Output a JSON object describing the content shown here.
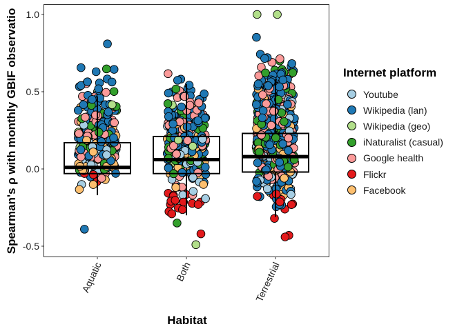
{
  "chart_data": {
    "type": "boxplot-jitter",
    "title": "",
    "xlabel": "Habitat",
    "ylabel": "Spearman's ρ with monthly GBIF observatio",
    "ylim": [
      -0.56,
      1.06
    ],
    "yticks": [
      1.0,
      0.5,
      0.0,
      -0.5
    ],
    "ytick_labels": [
      "1.0",
      "0.5",
      "0.0",
      "-0.5"
    ],
    "categories": [
      "Aquatic",
      "Both",
      "Terrestrial"
    ],
    "boxes": [
      {
        "category": "Aquatic",
        "q1": -0.03,
        "median": 0.01,
        "q3": 0.17,
        "whisker_low": -0.17,
        "whisker_high": 0.47
      },
      {
        "category": "Both",
        "q1": -0.03,
        "median": 0.06,
        "q3": 0.21,
        "whisker_low": -0.3,
        "whisker_high": 0.55
      },
      {
        "category": "Terrestrial",
        "q1": -0.02,
        "median": 0.08,
        "q3": 0.23,
        "whisker_low": -0.31,
        "whisker_high": 0.58
      }
    ],
    "grid": false,
    "legend_position": "right",
    "legend": {
      "title": "Internet platform",
      "entries": [
        {
          "name": "Youtube",
          "color": "#a6cee3"
        },
        {
          "name": "Wikipedia (lan)",
          "color": "#1f78b4"
        },
        {
          "name": "Wikipedia (geo)",
          "color": "#b2df8a"
        },
        {
          "name": "iNaturalist (casual)",
          "color": "#33a02c"
        },
        {
          "name": "Google health",
          "color": "#fb9a99"
        },
        {
          "name": "Flickr",
          "color": "#e31a1c"
        },
        {
          "name": "Facebook",
          "color": "#fdbf6f"
        }
      ]
    },
    "notable_points": [
      {
        "category": "Aquatic",
        "platform": "Wikipedia (lan)",
        "y": -0.39
      },
      {
        "category": "Aquatic",
        "platform": "Wikipedia (lan)",
        "y": 0.81
      },
      {
        "category": "Both",
        "platform": "Flickr",
        "y": -0.42
      },
      {
        "category": "Both",
        "platform": "Wikipedia (geo)",
        "y": -0.49
      },
      {
        "category": "Both",
        "platform": "iNaturalist (casual)",
        "y": -0.35
      },
      {
        "category": "Terrestrial",
        "platform": "Wikipedia (geo)",
        "y": 1.0
      },
      {
        "category": "Terrestrial",
        "platform": "Wikipedia (geo)",
        "y": 1.0
      },
      {
        "category": "Terrestrial",
        "platform": "Flickr",
        "y": -0.44
      },
      {
        "category": "Terrestrial",
        "platform": "Flickr",
        "y": -0.43
      },
      {
        "category": "Terrestrial",
        "platform": "Flickr",
        "y": -0.32
      }
    ],
    "point_distribution": [
      {
        "category": "Aquatic",
        "platform": "Youtube",
        "count": 30,
        "min": -0.18,
        "max": 0.45
      },
      {
        "category": "Aquatic",
        "platform": "Wikipedia (lan)",
        "count": 95,
        "min": -0.12,
        "max": 0.8
      },
      {
        "category": "Aquatic",
        "platform": "Wikipedia (geo)",
        "count": 4,
        "min": 0.1,
        "max": 0.7
      },
      {
        "category": "Aquatic",
        "platform": "iNaturalist (casual)",
        "count": 40,
        "min": -0.1,
        "max": 0.7
      },
      {
        "category": "Aquatic",
        "platform": "Google health",
        "count": 45,
        "min": -0.15,
        "max": 0.65
      },
      {
        "category": "Aquatic",
        "platform": "Flickr",
        "count": 4,
        "min": -0.15,
        "max": 0.1
      },
      {
        "category": "Aquatic",
        "platform": "Facebook",
        "count": 35,
        "min": -0.17,
        "max": 0.5
      },
      {
        "category": "Both",
        "platform": "Youtube",
        "count": 35,
        "min": -0.2,
        "max": 0.55
      },
      {
        "category": "Both",
        "platform": "Wikipedia (lan)",
        "count": 120,
        "min": -0.15,
        "max": 0.75
      },
      {
        "category": "Both",
        "platform": "Wikipedia (geo)",
        "count": 6,
        "min": 0.0,
        "max": 0.6
      },
      {
        "category": "Both",
        "platform": "iNaturalist (casual)",
        "count": 45,
        "min": -0.15,
        "max": 0.62
      },
      {
        "category": "Both",
        "platform": "Google health",
        "count": 60,
        "min": -0.2,
        "max": 0.72
      },
      {
        "category": "Both",
        "platform": "Flickr",
        "count": 16,
        "min": -0.31,
        "max": -0.1
      },
      {
        "category": "Both",
        "platform": "Facebook",
        "count": 40,
        "min": -0.2,
        "max": 0.6
      },
      {
        "category": "Terrestrial",
        "platform": "Youtube",
        "count": 50,
        "min": -0.25,
        "max": 0.7
      },
      {
        "category": "Terrestrial",
        "platform": "Wikipedia (lan)",
        "count": 200,
        "min": -0.3,
        "max": 0.96
      },
      {
        "category": "Terrestrial",
        "platform": "Wikipedia (geo)",
        "count": 6,
        "min": 0.0,
        "max": 0.8
      },
      {
        "category": "Terrestrial",
        "platform": "iNaturalist (casual)",
        "count": 70,
        "min": -0.2,
        "max": 0.8
      },
      {
        "category": "Terrestrial",
        "platform": "Google health",
        "count": 90,
        "min": -0.25,
        "max": 0.9
      },
      {
        "category": "Terrestrial",
        "platform": "Flickr",
        "count": 8,
        "min": -0.32,
        "max": -0.1
      },
      {
        "category": "Terrestrial",
        "platform": "Facebook",
        "count": 60,
        "min": -0.28,
        "max": 0.75
      }
    ]
  }
}
